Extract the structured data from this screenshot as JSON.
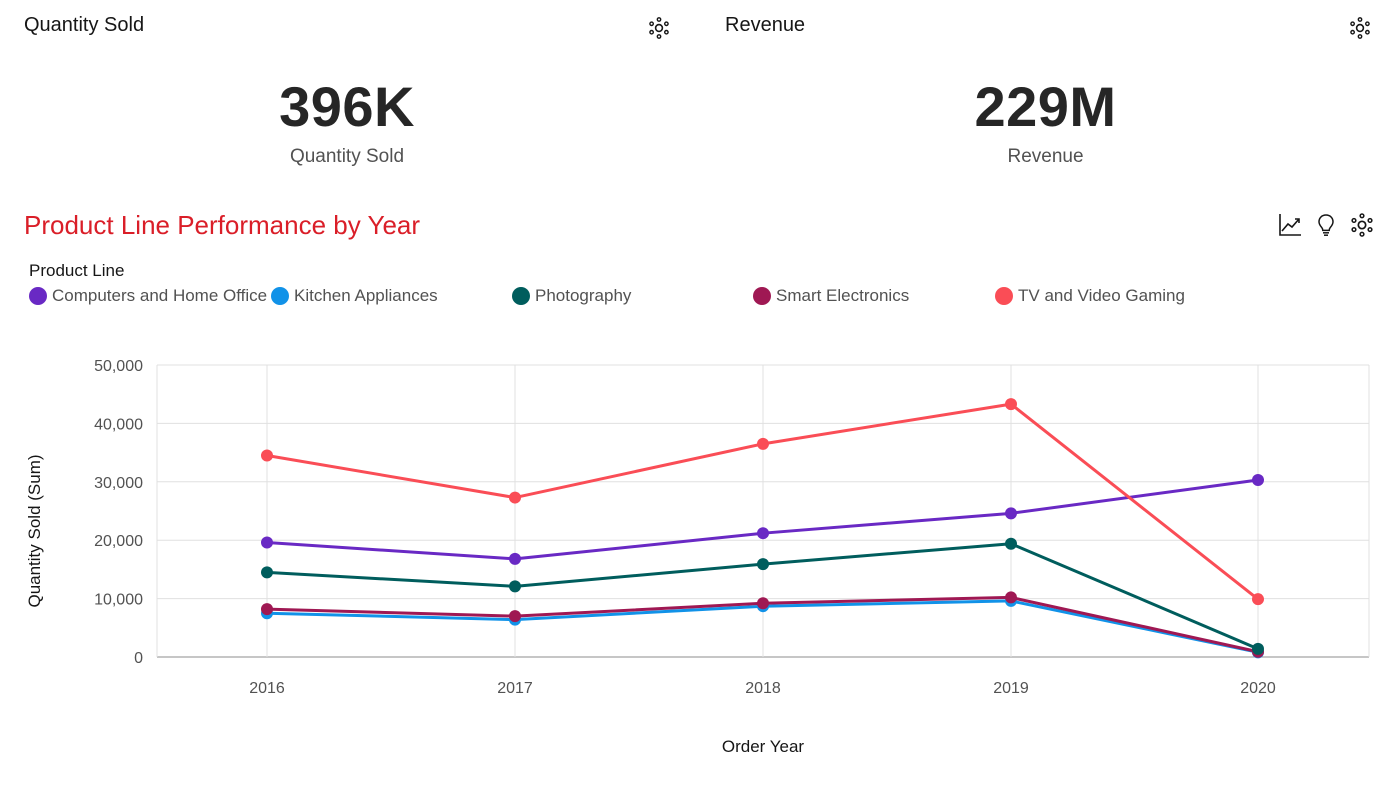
{
  "kpis": [
    {
      "title": "Quantity Sold",
      "value": "396K",
      "label": "Quantity Sold",
      "icon": "settings-icon"
    },
    {
      "title": "Revenue",
      "value": "229M",
      "label": "Revenue",
      "icon": "settings-icon"
    }
  ],
  "chart_title": "Product Line Performance by Year",
  "toolbar": {
    "icons": [
      "line-chart-icon",
      "lightbulb-icon",
      "settings-icon"
    ]
  },
  "legend": {
    "title": "Product Line",
    "items": [
      {
        "label": "Computers and Home Office",
        "color": "#6929c4"
      },
      {
        "label": "Kitchen Appliances",
        "color": "#1192e8"
      },
      {
        "label": "Photography",
        "color": "#005d5d"
      },
      {
        "label": "Smart Electronics",
        "color": "#9f1853"
      },
      {
        "label": "TV and Video Gaming",
        "color": "#fa4d56"
      }
    ]
  },
  "chart_data": {
    "type": "line",
    "x": [
      2016,
      2017,
      2018,
      2019,
      2020
    ],
    "xlabel": "Order Year",
    "ylabel": "Quantity Sold (Sum)",
    "ylim": [
      0,
      50000
    ],
    "yticks": [
      0,
      10000,
      20000,
      30000,
      40000,
      50000
    ],
    "ytick_labels": [
      "0",
      "10,000",
      "20,000",
      "30,000",
      "40,000",
      "50,000"
    ],
    "grid": true,
    "series": [
      {
        "name": "Kitchen Appliances",
        "color": "#1192e8",
        "values": [
          7500,
          6400,
          8700,
          9600,
          800
        ]
      },
      {
        "name": "Smart Electronics",
        "color": "#9f1853",
        "values": [
          8200,
          7000,
          9200,
          10200,
          900
        ]
      },
      {
        "name": "Photography",
        "color": "#005d5d",
        "values": [
          14500,
          12100,
          15900,
          19400,
          1400
        ]
      },
      {
        "name": "Computers and Home Office",
        "color": "#6929c4",
        "values": [
          19600,
          16800,
          21200,
          24600,
          30300
        ]
      },
      {
        "name": "TV and Video Gaming",
        "color": "#fa4d56",
        "values": [
          34500,
          27300,
          36500,
          43300,
          9900
        ]
      }
    ]
  }
}
